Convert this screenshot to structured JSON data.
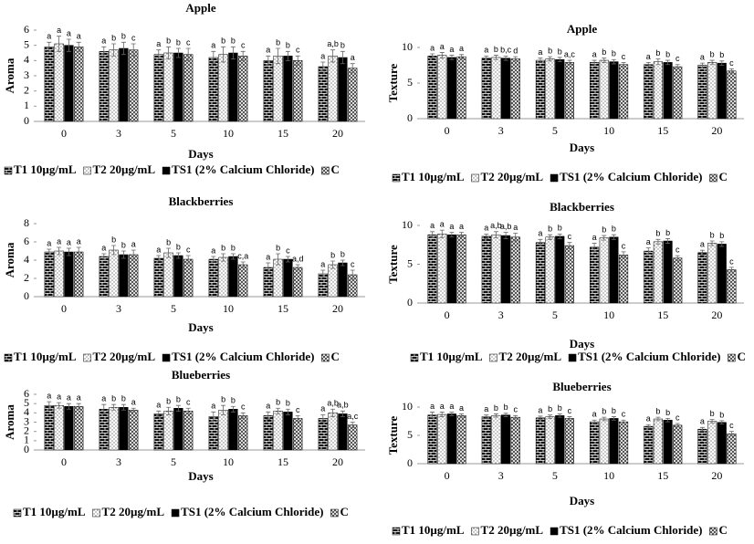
{
  "chart_data": [
    {
      "type": "bar",
      "title": "Apple",
      "x_label": "Days",
      "y_label": "Aroma",
      "categories": [
        "0",
        "3",
        "5",
        "10",
        "15",
        "20"
      ],
      "ylim": [
        0,
        6
      ],
      "yticks": [
        0,
        1,
        2,
        3,
        4,
        5,
        6
      ],
      "series": [
        {
          "name": "T1 10µg/mL",
          "color": "#000000",
          "pattern": "brick",
          "values": [
            4.9,
            4.6,
            4.4,
            4.2,
            4.0,
            3.6
          ],
          "errors": [
            0.3,
            0.3,
            0.3,
            0.4,
            0.3,
            0.3
          ],
          "labels": [
            "a",
            "a",
            "a",
            "a",
            "a",
            "a"
          ]
        },
        {
          "name": "T2 20µg/mL",
          "color": "#000000",
          "pattern": "dots",
          "values": [
            5.1,
            4.7,
            4.5,
            4.4,
            4.3,
            4.3
          ],
          "errors": [
            0.5,
            0.4,
            0.4,
            0.5,
            0.5,
            0.4
          ],
          "labels": [
            "a",
            "b",
            "b",
            "b",
            "b",
            "a,b"
          ]
        },
        {
          "name": "TS1 (2% Calcium Chloride)",
          "color": "#000000",
          "pattern": "solid",
          "values": [
            5.0,
            4.8,
            4.5,
            4.5,
            4.3,
            4.2
          ],
          "errors": [
            0.4,
            0.4,
            0.3,
            0.4,
            0.3,
            0.4
          ],
          "labels": [
            "a",
            "b",
            "b",
            "b",
            "b",
            "b"
          ]
        },
        {
          "name": "C",
          "color": "#000000",
          "pattern": "checker",
          "values": [
            4.9,
            4.7,
            4.4,
            4.3,
            4.0,
            3.5
          ],
          "errors": [
            0.3,
            0.4,
            0.4,
            0.3,
            0.3,
            0.3
          ],
          "labels": [
            "a",
            "c",
            "c",
            "c",
            "c",
            "a"
          ]
        }
      ]
    },
    {
      "type": "bar",
      "title": "Apple",
      "x_label": "Days",
      "y_label": "Texture",
      "categories": [
        "0",
        "3",
        "5",
        "10",
        "15",
        "20"
      ],
      "ylim": [
        0,
        10
      ],
      "yticks": [
        0,
        5,
        10
      ],
      "series": [
        {
          "name": "T1 10µg/mL",
          "color": "#000000",
          "pattern": "brick",
          "values": [
            8.8,
            8.5,
            8.2,
            7.9,
            7.6,
            7.5
          ],
          "errors": [
            0.3,
            0.3,
            0.3,
            0.3,
            0.3,
            0.3
          ],
          "labels": [
            "a",
            "a",
            "a",
            "a",
            "a",
            "a"
          ]
        },
        {
          "name": "T2 20µg/mL",
          "color": "#000000",
          "pattern": "dots",
          "values": [
            8.9,
            8.6,
            8.4,
            8.2,
            8.0,
            7.9
          ],
          "errors": [
            0.4,
            0.3,
            0.3,
            0.3,
            0.4,
            0.3
          ],
          "labels": [
            "a",
            "b",
            "b",
            "b",
            "b",
            "b"
          ]
        },
        {
          "name": "TS1 (2% Calcium Chloride)",
          "color": "#000000",
          "pattern": "solid",
          "values": [
            8.6,
            8.5,
            8.3,
            8.0,
            7.9,
            7.8
          ],
          "errors": [
            0.3,
            0.3,
            0.3,
            0.3,
            0.3,
            0.3
          ],
          "labels": [
            "a",
            "b,c",
            "b",
            "b",
            "b",
            "b"
          ]
        },
        {
          "name": "C",
          "color": "#000000",
          "pattern": "checker",
          "values": [
            8.7,
            8.4,
            7.9,
            7.6,
            7.3,
            6.7
          ],
          "errors": [
            0.3,
            0.3,
            0.3,
            0.3,
            0.3,
            0.3
          ],
          "labels": [
            "a",
            "d",
            "a,c",
            "c",
            "c",
            "c"
          ]
        }
      ]
    },
    {
      "type": "bar",
      "title": "Blackberries",
      "x_label": "Days",
      "y_label": "Aroma",
      "categories": [
        "0",
        "3",
        "5",
        "10",
        "15",
        "20"
      ],
      "ylim": [
        0,
        8
      ],
      "yticks": [
        0,
        2,
        4,
        6,
        8
      ],
      "series": [
        {
          "name": "T1 10µg/mL",
          "color": "#000000",
          "pattern": "brick",
          "values": [
            4.9,
            4.4,
            4.2,
            4.1,
            3.2,
            2.5
          ],
          "errors": [
            0.3,
            0.3,
            0.3,
            0.3,
            0.5,
            0.4
          ],
          "labels": [
            "a",
            "a",
            "a",
            "a",
            "a",
            "a"
          ]
        },
        {
          "name": "T2 20µg/mL",
          "color": "#000000",
          "pattern": "dots",
          "values": [
            5.0,
            5.1,
            4.8,
            4.3,
            4.1,
            3.5
          ],
          "errors": [
            0.4,
            0.5,
            0.5,
            0.4,
            0.6,
            0.4
          ],
          "labels": [
            "a",
            "b",
            "b",
            "b",
            "b",
            "b"
          ]
        },
        {
          "name": "TS1 (2% Calcium Chloride)",
          "color": "#000000",
          "pattern": "solid",
          "values": [
            4.9,
            4.6,
            4.5,
            4.4,
            4.1,
            3.7
          ],
          "errors": [
            0.4,
            0.4,
            0.3,
            0.3,
            0.3,
            0.3
          ],
          "labels": [
            "a",
            "b",
            "b",
            "b",
            "c",
            "b"
          ]
        },
        {
          "name": "C",
          "color": "#000000",
          "pattern": "checker",
          "values": [
            4.9,
            4.6,
            4.1,
            3.5,
            3.2,
            2.4
          ],
          "errors": [
            0.5,
            0.5,
            0.4,
            0.3,
            0.3,
            0.5
          ],
          "labels": [
            "a",
            "a",
            "c",
            "c,a",
            "a,d",
            "c"
          ]
        }
      ]
    },
    {
      "type": "bar",
      "title": "Blackberries",
      "x_label": "Days",
      "y_label": "Texture",
      "categories": [
        "0",
        "3",
        "5",
        "10",
        "15",
        "20"
      ],
      "ylim": [
        0,
        10
      ],
      "yticks": [
        0,
        5,
        10
      ],
      "series": [
        {
          "name": "T1 10µg/mL",
          "color": "#000000",
          "pattern": "brick",
          "values": [
            8.8,
            8.6,
            7.8,
            7.2,
            6.7,
            6.5
          ],
          "errors": [
            0.4,
            0.3,
            0.4,
            0.5,
            0.4,
            0.3
          ],
          "labels": [
            "a",
            "a",
            "a",
            "a",
            "a",
            "a"
          ]
        },
        {
          "name": "T2 20µg/mL",
          "color": "#000000",
          "pattern": "dots",
          "values": [
            8.9,
            8.8,
            8.5,
            8.4,
            7.9,
            7.7
          ],
          "errors": [
            0.5,
            0.4,
            0.3,
            0.3,
            0.3,
            0.3
          ],
          "labels": [
            "a",
            "a,b",
            "b",
            "b",
            "b",
            "b"
          ]
        },
        {
          "name": "TS1 (2% Calcium Chloride)",
          "color": "#000000",
          "pattern": "solid",
          "values": [
            8.8,
            8.7,
            8.6,
            8.5,
            8.0,
            7.6
          ],
          "errors": [
            0.3,
            0.4,
            0.3,
            0.3,
            0.3,
            0.3
          ],
          "labels": [
            "a",
            "a,b",
            "b",
            "b",
            "b",
            "b"
          ]
        },
        {
          "name": "C",
          "color": "#000000",
          "pattern": "checker",
          "values": [
            8.8,
            8.5,
            7.4,
            6.2,
            5.8,
            4.3
          ],
          "errors": [
            0.3,
            0.5,
            0.4,
            0.4,
            0.3,
            0.3
          ],
          "labels": [
            "a",
            "a",
            "c",
            "c",
            "c",
            "c"
          ]
        }
      ]
    },
    {
      "type": "bar",
      "title": "Blueberries",
      "x_label": "Days",
      "y_label": "Aroma",
      "categories": [
        "0",
        "3",
        "5",
        "10",
        "15",
        "20"
      ],
      "ylim": [
        0,
        6
      ],
      "yticks": [
        0,
        1,
        2,
        3,
        4,
        5,
        6
      ],
      "series": [
        {
          "name": "T1 10µg/mL",
          "color": "#000000",
          "pattern": "brick",
          "values": [
            4.8,
            4.4,
            3.9,
            3.6,
            3.7,
            3.4
          ],
          "errors": [
            0.4,
            0.5,
            0.3,
            0.5,
            0.4,
            0.4
          ],
          "labels": [
            "a",
            "a",
            "a",
            "a",
            "a",
            "a"
          ]
        },
        {
          "name": "T2 20µg/mL",
          "color": "#000000",
          "pattern": "dots",
          "values": [
            4.8,
            4.6,
            4.2,
            4.3,
            4.2,
            4.0
          ],
          "errors": [
            0.3,
            0.3,
            0.4,
            0.5,
            0.3,
            0.4
          ],
          "labels": [
            "a",
            "b",
            "b",
            "b",
            "b",
            "a,b"
          ]
        },
        {
          "name": "TS1 (2% Calcium Chloride)",
          "color": "#000000",
          "pattern": "solid",
          "values": [
            4.7,
            4.6,
            4.5,
            4.4,
            4.1,
            3.9
          ],
          "errors": [
            0.3,
            0.3,
            0.3,
            0.3,
            0.3,
            0.3
          ],
          "labels": [
            "a",
            "b",
            "b",
            "b",
            "b",
            "a,b"
          ]
        },
        {
          "name": "C",
          "color": "#000000",
          "pattern": "checker",
          "values": [
            4.7,
            4.3,
            4.2,
            3.7,
            3.4,
            2.7
          ],
          "errors": [
            0.3,
            0.2,
            0.3,
            0.3,
            0.3,
            0.3
          ],
          "labels": [
            "a",
            "a",
            "c",
            "c",
            "c",
            "a,c"
          ]
        }
      ]
    },
    {
      "type": "bar",
      "title": "Blueberries",
      "x_label": "Days",
      "y_label": "Texture",
      "categories": [
        "0",
        "3",
        "5",
        "10",
        "15",
        "20"
      ],
      "ylim": [
        0,
        10
      ],
      "yticks": [
        0,
        5,
        10
      ],
      "series": [
        {
          "name": "T1 10µg/mL",
          "color": "#000000",
          "pattern": "brick",
          "values": [
            8.6,
            8.3,
            8.1,
            7.4,
            6.6,
            6.1
          ],
          "errors": [
            0.5,
            0.3,
            0.3,
            0.3,
            0.3,
            0.3
          ],
          "labels": [
            "a",
            "a",
            "a",
            "a",
            "a",
            "a"
          ]
        },
        {
          "name": "T2 20µg/mL",
          "color": "#000000",
          "pattern": "dots",
          "values": [
            8.7,
            8.5,
            8.3,
            7.9,
            7.9,
            7.5
          ],
          "errors": [
            0.4,
            0.3,
            0.3,
            0.3,
            0.3,
            0.3
          ],
          "labels": [
            "a",
            "b",
            "b",
            "b",
            "b",
            "b"
          ]
        },
        {
          "name": "TS1 (2% Calcium Chloride)",
          "color": "#000000",
          "pattern": "solid",
          "values": [
            8.8,
            8.6,
            8.5,
            8.0,
            7.7,
            7.3
          ],
          "errors": [
            0.3,
            0.3,
            0.3,
            0.3,
            0.3,
            0.3
          ],
          "labels": [
            "a",
            "b",
            "b",
            "b",
            "b",
            "b"
          ]
        },
        {
          "name": "C",
          "color": "#000000",
          "pattern": "checker",
          "values": [
            8.5,
            8.2,
            8.0,
            7.4,
            6.8,
            5.3
          ],
          "errors": [
            0.3,
            0.3,
            0.3,
            0.3,
            0.3,
            0.4
          ],
          "labels": [
            "a",
            "c",
            "c",
            "c",
            "c",
            "c"
          ]
        }
      ]
    }
  ]
}
